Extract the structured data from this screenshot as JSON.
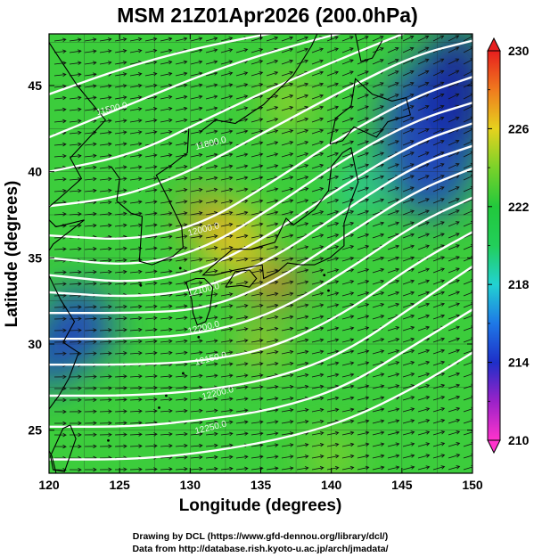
{
  "figure": {
    "title": "MSM 21Z01Apr2026 (200.0hPa)",
    "xlabel": "Longitude (degrees)",
    "ylabel": "Latitude  (degrees)",
    "credit_line1": "Drawing by DCL (https://www.gfd-dennou.org/library/dcl/)",
    "credit_line2": "Data from http://database.rish.kyoto-u.ac.jp/arch/jmadata/"
  },
  "colors": {
    "high": "#f05a28",
    "mid": "#22c84a",
    "low": "#1e3cc8",
    "contour": "#ffffff",
    "vector": "#111111",
    "coast": "#000000",
    "grid": "#222222"
  },
  "chart_data": {
    "type": "map",
    "xlim": [
      120,
      150
    ],
    "ylim": [
      22.5,
      48
    ],
    "xticks": [
      "120",
      "125",
      "130",
      "135",
      "140",
      "145",
      "150"
    ],
    "yticks": [
      "25",
      "30",
      "35",
      "40",
      "45"
    ],
    "grid": true,
    "legend": "colorbar-right",
    "colorbar": {
      "min": 210,
      "max": 230,
      "labels": [
        "230",
        "226",
        "222",
        "218",
        "214",
        "210"
      ],
      "stops": [
        {
          "v": 210,
          "c": "#ff33cc"
        },
        {
          "v": 212,
          "c": "#9a22c8"
        },
        {
          "v": 214,
          "c": "#1e2fc8"
        },
        {
          "v": 216,
          "c": "#1e78e6"
        },
        {
          "v": 218,
          "c": "#22d2d2"
        },
        {
          "v": 220,
          "c": "#22cf5a"
        },
        {
          "v": 222,
          "c": "#22c83c"
        },
        {
          "v": 224,
          "c": "#7ad22a"
        },
        {
          "v": 226,
          "c": "#e6d21e"
        },
        {
          "v": 228,
          "c": "#f07a1e"
        },
        {
          "v": 230,
          "c": "#e61e1e"
        }
      ]
    },
    "contour_labels": [
      {
        "text": "11500.0",
        "lon": 124.5,
        "lat": 43.5
      },
      {
        "text": "11800.0",
        "lon": 131.5,
        "lat": 41.5
      },
      {
        "text": "12000.0",
        "lon": 131.0,
        "lat": 36.5
      },
      {
        "text": "12100.0",
        "lon": 131.0,
        "lat": 33.0
      },
      {
        "text": "12200.0",
        "lon": 131.0,
        "lat": 30.8
      },
      {
        "text": "12150.0",
        "lon": 131.5,
        "lat": 29.0
      },
      {
        "text": "12200.0",
        "lon": 132.0,
        "lat": 27.0
      },
      {
        "text": "12250.0",
        "lon": 131.5,
        "lat": 25.0
      }
    ]
  }
}
